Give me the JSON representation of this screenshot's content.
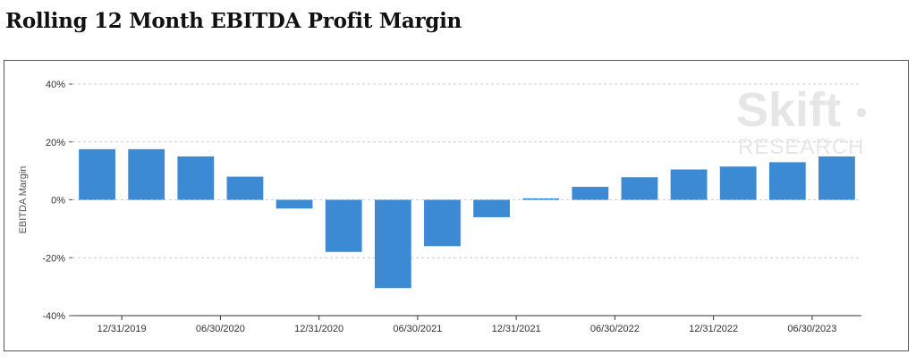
{
  "title": "Rolling 12 Month EBITDA Profit Margin",
  "watermark": {
    "brand": "Skift",
    "sub": "RESEARCH"
  },
  "chart_data": {
    "type": "bar",
    "title": "Rolling 12 Month EBITDA Profit Margin",
    "ylabel": "EBITDA Margin",
    "xlabel": "",
    "ylim": [
      -40,
      40
    ],
    "yticks": [
      40,
      20,
      0,
      -20,
      -40
    ],
    "ytick_labels": [
      "40%",
      "20%",
      "0%",
      "-20%",
      "-40%"
    ],
    "grid": true,
    "bar_color": "#3d8ad4",
    "x_tick_labels": [
      {
        "label": "12/31/2019",
        "between": [
          0,
          1
        ]
      },
      {
        "label": "06/30/2020",
        "between": [
          2,
          3
        ]
      },
      {
        "label": "12/31/2020",
        "between": [
          4,
          5
        ]
      },
      {
        "label": "06/30/2021",
        "between": [
          6,
          7
        ]
      },
      {
        "label": "12/31/2021",
        "between": [
          8,
          9
        ]
      },
      {
        "label": "06/30/2022",
        "between": [
          10,
          11
        ]
      },
      {
        "label": "12/31/2022",
        "between": [
          12,
          13
        ]
      },
      {
        "label": "06/30/2023",
        "between": [
          14,
          15
        ]
      }
    ],
    "values": [
      17.5,
      17.5,
      15,
      8,
      -3,
      -18,
      -30.5,
      -16,
      -6,
      0.5,
      4.5,
      7.8,
      10.5,
      11.5,
      13,
      15
    ]
  }
}
